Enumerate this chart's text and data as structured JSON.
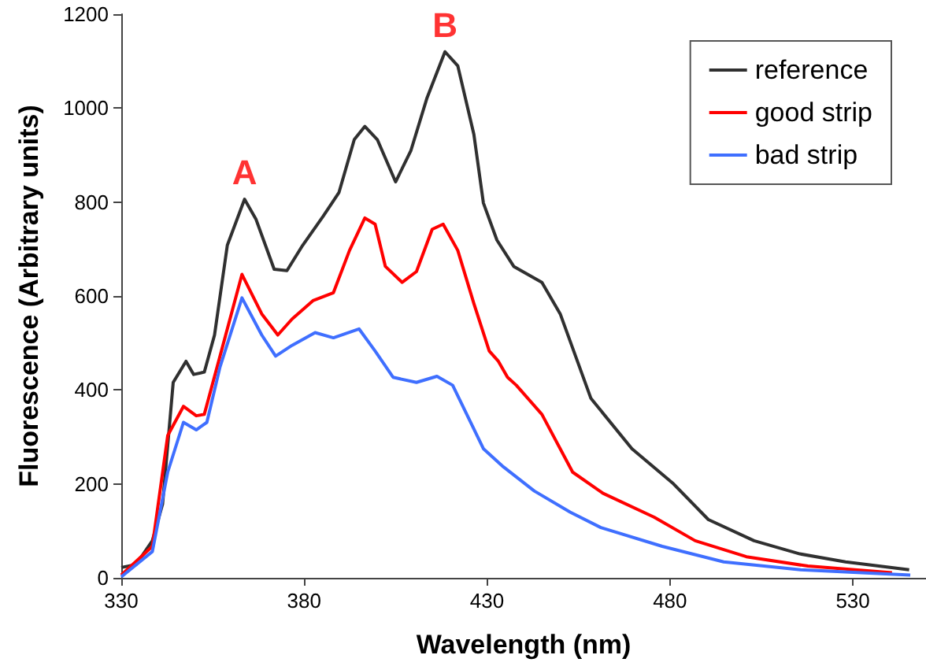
{
  "chart_data": {
    "type": "line",
    "xlabel": "Wavelength (nm)",
    "ylabel": "Fluorescence (Arbitrary units)",
    "xlim": [
      330,
      550
    ],
    "xticks": [
      330,
      380,
      430,
      480,
      530
    ],
    "ylim": [
      0,
      1200
    ],
    "yticks": [
      0,
      200,
      400,
      600,
      800,
      1000,
      1200
    ],
    "grid": false,
    "legend": "top right",
    "marker": "none",
    "line_style": "solid",
    "annotations": [
      {
        "text": "A",
        "x": 363.7,
        "y": 806
      },
      {
        "text": "B",
        "x": 418.5,
        "y": 1120
      }
    ],
    "series": [
      {
        "name": "reference",
        "color": "#303030",
        "x": [
          330,
          334,
          338.5,
          341.3,
          344.2,
          347.7,
          349.8,
          352.7,
          355.5,
          359,
          363.7,
          366.8,
          371.8,
          375.3,
          379.6,
          385.2,
          389.5,
          393.7,
          396.6,
          400,
          405,
          409.2,
          413.6,
          418.5,
          422,
          426.4,
          429,
          432.7,
          437.3,
          445,
          450,
          458.4,
          469.6,
          480.7,
          490.5,
          503,
          515.5,
          528,
          545.4
        ],
        "values": [
          22,
          28,
          79,
          157,
          416,
          461,
          433,
          438,
          517,
          708,
          806,
          764,
          657,
          654,
          708,
          770,
          820,
          933,
          961,
          933,
          843,
          910,
          1022,
          1120,
          1090,
          944,
          798,
          719,
          663,
          629,
          562,
          382,
          275,
          202,
          124,
          79,
          51,
          34,
          17
        ]
      },
      {
        "name": "good strip",
        "color": "#ff0000",
        "x": [
          330,
          338.5,
          342.7,
          347,
          350.5,
          352.7,
          357,
          363,
          368.4,
          372.8,
          376.7,
          382.4,
          388,
          392.4,
          396.6,
          399.4,
          402.2,
          406.8,
          410.7,
          415,
          418,
          422,
          426.4,
          430.6,
          433.1,
          435.6,
          438,
          445,
          453.4,
          461.7,
          475.7,
          486.9,
          500.9,
          517.7,
          540.7
        ],
        "values": [
          6,
          67,
          303,
          365,
          345,
          348,
          472,
          646,
          562,
          517,
          551,
          590,
          607,
          697,
          766,
          753,
          663,
          629,
          652,
          742,
          753,
          697,
          584,
          483,
          461,
          427,
          410,
          348,
          225,
          180,
          129,
          79,
          45,
          25,
          11
        ]
      },
      {
        "name": "bad strip",
        "color": "#3f6fff",
        "x": [
          330,
          338.5,
          342.7,
          347,
          350.5,
          353.4,
          357,
          363,
          368.4,
          372.2,
          376.7,
          383,
          388,
          395,
          399.4,
          404.3,
          410.7,
          416.3,
          420.6,
          429,
          434.5,
          442.9,
          452.7,
          461.1,
          477.9,
          494.7,
          515.7,
          545.7
        ],
        "values": [
          2,
          56,
          225,
          331,
          315,
          331,
          449,
          596,
          517,
          472,
          495,
          522,
          511,
          530,
          483,
          427,
          416,
          429,
          410,
          275,
          236,
          185,
          140,
          107,
          67,
          34,
          17,
          6
        ]
      }
    ]
  }
}
